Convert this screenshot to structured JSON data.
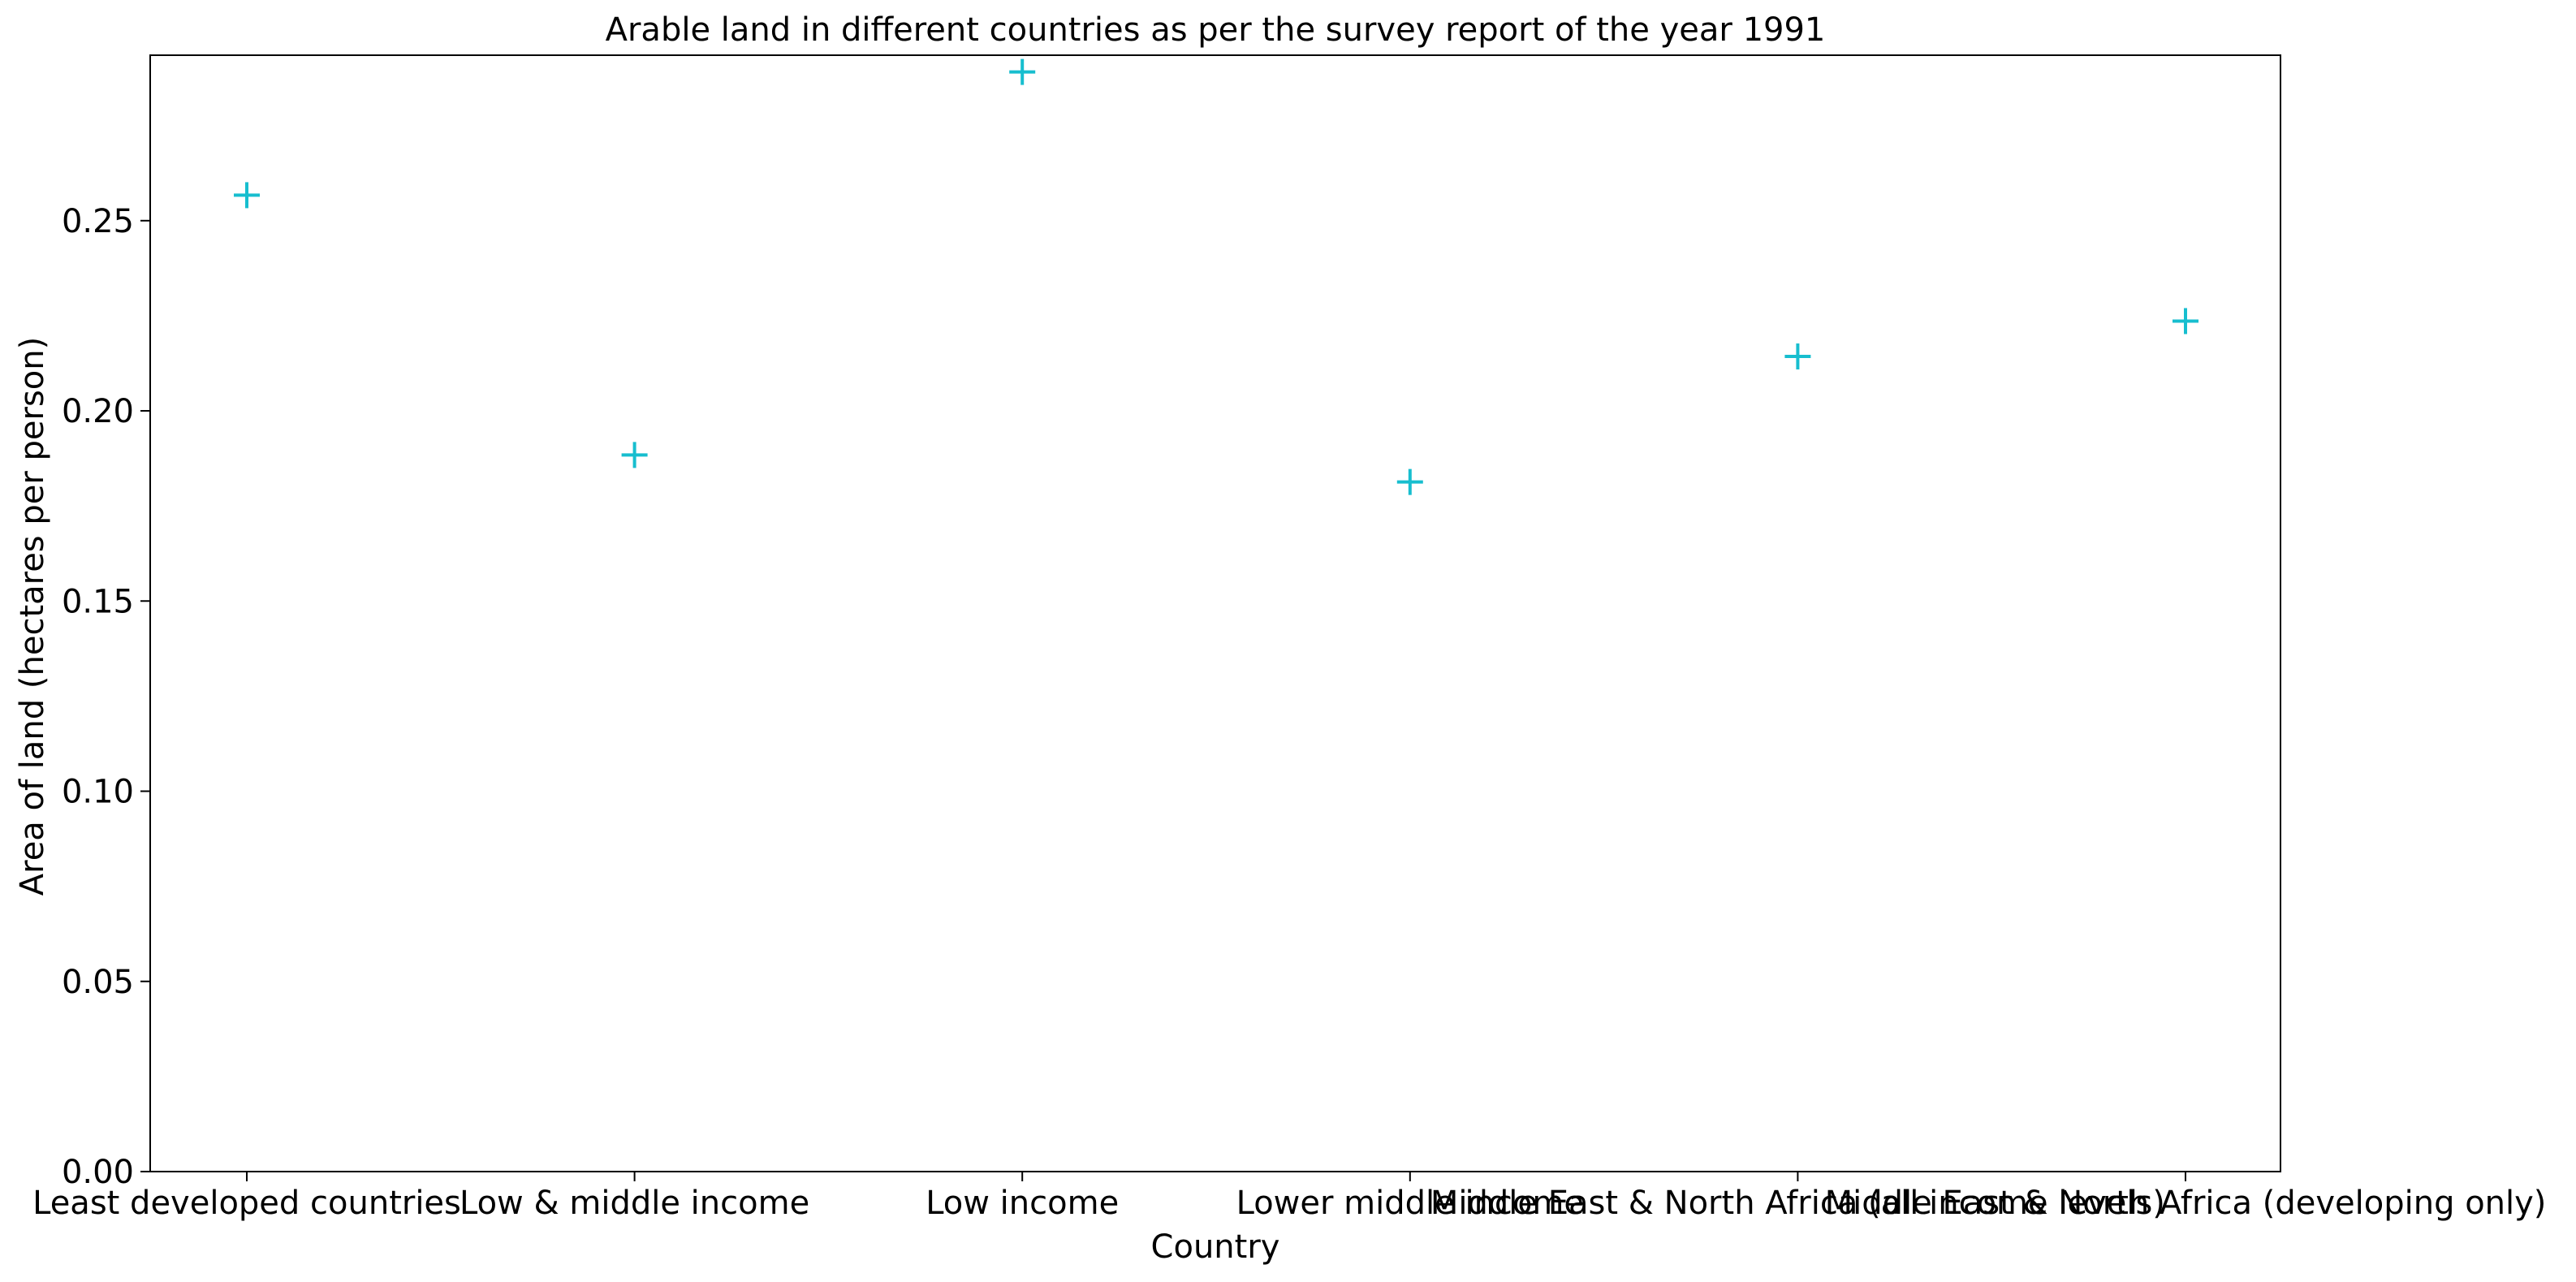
{
  "chart_data": {
    "type": "scatter",
    "title": "Arable land in different countries as per the survey report of the year 1991",
    "xlabel": "Country",
    "ylabel": "Area of land (hectares per person)",
    "categories": [
      "Least developed countries",
      "Low & middle income",
      "Low income",
      "Lower middle income",
      "Middle East & North Africa (all income levels)",
      "Middle East & North Africa (developing only)"
    ],
    "values": [
      0.2567,
      0.1884,
      0.2891,
      0.1813,
      0.2143,
      0.2236
    ],
    "ylim": [
      0,
      0.2935
    ],
    "yticks": [
      "0.00",
      "0.05",
      "0.10",
      "0.15",
      "0.20",
      "0.25"
    ],
    "ytick_values": [
      0,
      0.05,
      0.1,
      0.15,
      0.2,
      0.25
    ],
    "marker": "plus",
    "color": "#17becf",
    "grid": false,
    "legend": "none"
  }
}
